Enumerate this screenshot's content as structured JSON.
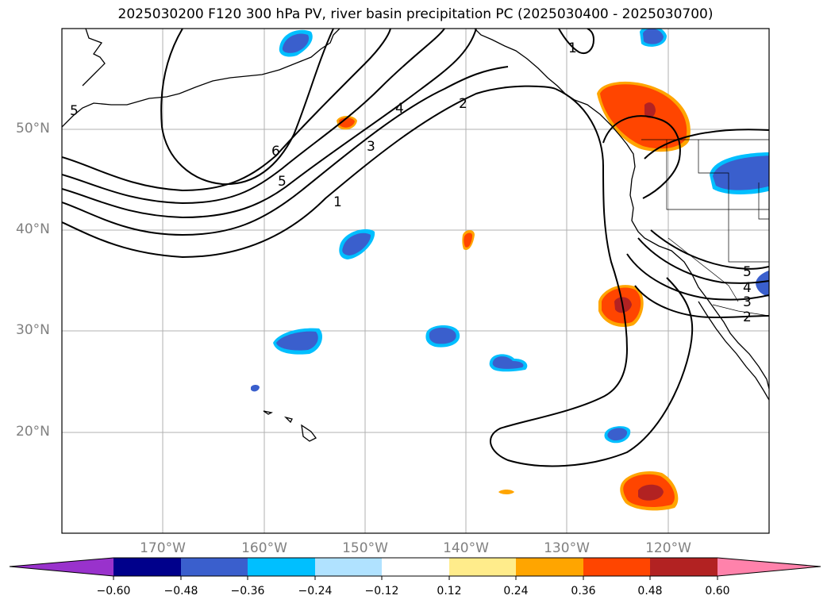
{
  "title": "2025030200 F120 300 hPa PV, river basin precipitation PC (2025030400 - 2025030700)",
  "lat_labels": [
    "50°N",
    "40°N",
    "30°N",
    "20°N"
  ],
  "lon_labels": [
    "170°W",
    "160°W",
    "150°W",
    "140°W",
    "130°W",
    "120°W"
  ],
  "colorbar": {
    "labels": [
      "−0.60",
      "−0.48",
      "−0.36",
      "−0.24",
      "−0.12",
      "0.12",
      "0.24",
      "0.36",
      "0.48",
      "0.60"
    ],
    "levels": [
      -0.6,
      -0.48,
      -0.36,
      -0.24,
      -0.12,
      0.12,
      0.24,
      0.36,
      0.48,
      0.6
    ],
    "colors": [
      "#9932cc",
      "#00008b",
      "#3a5fcd",
      "#00bfff",
      "#b0e2ff",
      "#ffffff",
      "#ffec8b",
      "#ffa500",
      "#ff4500",
      "#b22222",
      "#ff82ab"
    ]
  },
  "contour_labels": [
    "5",
    "6",
    "5",
    "4",
    "3",
    "2",
    "1",
    "1",
    "5",
    "4",
    "3",
    "2"
  ],
  "colors": {
    "negative_fill": "#3a5fcd",
    "negative_edge": "#00bfff",
    "positive_fill": "#ff4500",
    "positive_core": "#b22222",
    "positive_edge": "#ffa500",
    "contour": "#000000",
    "grid": "#b0b0b0",
    "tick_label": "#808080"
  }
}
